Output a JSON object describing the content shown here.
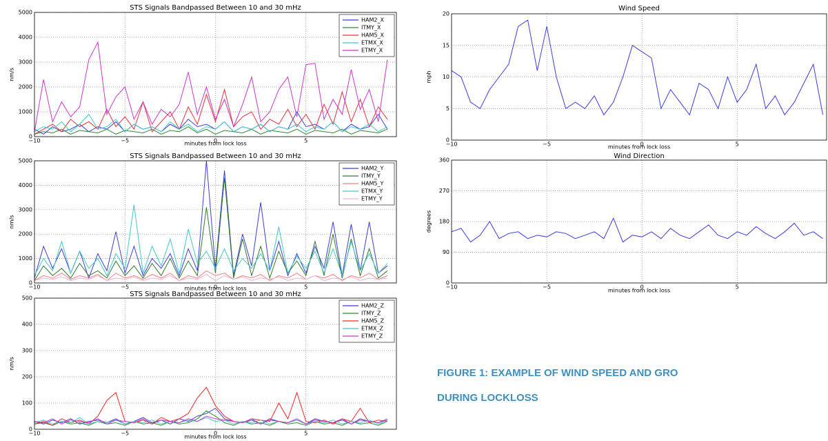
{
  "chart_data": [
    {
      "type": "line",
      "title": "STS Signals Bandpassed Between 10 and 30 mHz",
      "x_label": "minutes from lock loss",
      "y_label": "nm/s",
      "x": [
        -10,
        -9.5,
        -9,
        -8.5,
        -8,
        -7.5,
        -7,
        -6.5,
        -6,
        -5.5,
        -5,
        -4.5,
        -4,
        -3.5,
        -3,
        -2.5,
        -2,
        -1.5,
        -1,
        -0.5,
        0,
        0.5,
        1,
        1.5,
        2,
        2.5,
        3,
        3.5,
        4,
        4.5,
        5,
        5.5,
        6,
        6.5,
        7,
        7.5,
        8,
        8.5,
        9,
        9.5
      ],
      "xlim": [
        -10,
        10
      ],
      "xticks": [
        {
          "value": -10,
          "label": "−10"
        },
        {
          "value": -5,
          "label": "−5"
        },
        0,
        5
      ],
      "ylim": [
        0,
        5000
      ],
      "yticks": [
        0,
        1000,
        2000,
        3000,
        4000,
        5000
      ],
      "grid": true,
      "legend": "upper right",
      "series": [
        {
          "name": "HAM2_X",
          "color": "#3b3bd9",
          "values": [
            300,
            100,
            400,
            200,
            300,
            500,
            200,
            400,
            300,
            600,
            200,
            500,
            300,
            400,
            200,
            500,
            300,
            700,
            400,
            500,
            300,
            600,
            200,
            400,
            300,
            500,
            200,
            400,
            300,
            1000,
            400,
            500,
            300,
            600,
            200,
            500,
            300,
            400,
            900,
            300
          ]
        },
        {
          "name": "ITMY_X",
          "color": "#2e8b2e",
          "values": [
            100,
            200,
            150,
            300,
            100,
            250,
            200,
            150,
            300,
            100,
            250,
            200,
            150,
            300,
            100,
            250,
            200,
            400,
            150,
            300,
            100,
            250,
            200,
            150,
            300,
            100,
            250,
            200,
            150,
            300,
            100,
            250,
            200,
            150,
            300,
            100,
            250,
            200,
            150,
            300
          ]
        },
        {
          "name": "HAM5_X",
          "color": "#e8303a",
          "values": [
            100,
            300,
            500,
            200,
            700,
            400,
            600,
            300,
            1100,
            400,
            800,
            300,
            1400,
            200,
            600,
            1000,
            300,
            1200,
            500,
            1700,
            600,
            1900,
            400,
            800,
            1000,
            300,
            700,
            500,
            1100,
            400,
            900,
            300,
            1300,
            500,
            1800,
            600,
            1500,
            400,
            1200,
            700
          ]
        },
        {
          "name": "ETMX_X",
          "color": "#40c8c8",
          "values": [
            200,
            400,
            300,
            600,
            200,
            500,
            900,
            300,
            400,
            700,
            200,
            500,
            300,
            400,
            200,
            600,
            300,
            500,
            200,
            400,
            300,
            600,
            200,
            400,
            300,
            500,
            200,
            400,
            300,
            500,
            200,
            400,
            300,
            600,
            200,
            400,
            300,
            500,
            200,
            400
          ]
        },
        {
          "name": "ETMY_X",
          "color": "#cc33cc",
          "values": [
            200,
            2300,
            600,
            1400,
            800,
            1200,
            3100,
            3800,
            900,
            1600,
            2000,
            700,
            1400,
            500,
            1100,
            800,
            1300,
            2600,
            900,
            2000,
            700,
            1500,
            400,
            1300,
            2400,
            600,
            1000,
            1900,
            2400,
            800,
            2900,
            2950,
            700,
            1500,
            900,
            2700,
            1100,
            1900,
            600,
            3100
          ]
        }
      ]
    },
    {
      "type": "line",
      "title": "STS Signals Bandpassed Between 10 and 30 mHz",
      "x_label": "minutes from lock loss",
      "y_label": "nm/s",
      "x": [
        -10,
        -9.5,
        -9,
        -8.5,
        -8,
        -7.5,
        -7,
        -6.5,
        -6,
        -5.5,
        -5,
        -4.5,
        -4,
        -3.5,
        -3,
        -2.5,
        -2,
        -1.5,
        -1,
        -0.5,
        0,
        0.5,
        1,
        1.5,
        2,
        2.5,
        3,
        3.5,
        4,
        4.5,
        5,
        5.5,
        6,
        6.5,
        7,
        7.5,
        8,
        8.5,
        9,
        9.5
      ],
      "xlim": [
        -10,
        10
      ],
      "xticks": [
        {
          "value": -10,
          "label": "−10"
        },
        {
          "value": -5,
          "label": "−5"
        },
        0,
        5
      ],
      "ylim": [
        0,
        5000
      ],
      "yticks": [
        0,
        1000,
        2000,
        3000,
        4000,
        5000
      ],
      "grid": true,
      "legend": "upper right",
      "series": [
        {
          "name": "HAM2_Y",
          "color": "#3b3bd9",
          "values": [
            200,
            1500,
            600,
            1400,
            400,
            1300,
            200,
            1200,
            500,
            2100,
            400,
            1500,
            300,
            1000,
            600,
            1200,
            300,
            1400,
            500,
            5000,
            600,
            4600,
            300,
            2000,
            700,
            3300,
            500,
            1700,
            300,
            1200,
            400,
            1500,
            600,
            2500,
            300,
            2400,
            500,
            2500,
            400,
            700
          ]
        },
        {
          "name": "ITMY_Y",
          "color": "#2e7a2e",
          "values": [
            100,
            700,
            300,
            600,
            200,
            800,
            300,
            500,
            200,
            900,
            300,
            700,
            200,
            800,
            300,
            1000,
            200,
            900,
            300,
            3100,
            400,
            4300,
            200,
            1800,
            300,
            1500,
            200,
            1300,
            400,
            900,
            300,
            1700,
            300,
            2000,
            200,
            1800,
            300,
            1400,
            200,
            500
          ]
        },
        {
          "name": "HAM5_Y",
          "color": "#f08080",
          "values": [
            100,
            300,
            200,
            400,
            150,
            300,
            200,
            350,
            100,
            400,
            200,
            300,
            150,
            350,
            200,
            400,
            100,
            300,
            200,
            500,
            300,
            400,
            150,
            300,
            200,
            350,
            100,
            300,
            200,
            400,
            150,
            300,
            200,
            350,
            100,
            300,
            200,
            400,
            150,
            300
          ]
        },
        {
          "name": "ETMX_Y",
          "color": "#40c8c8",
          "values": [
            300,
            1000,
            500,
            1700,
            400,
            1300,
            600,
            1000,
            300,
            1200,
            600,
            3200,
            400,
            1500,
            700,
            1800,
            400,
            2200,
            800,
            1300,
            600,
            1400,
            500,
            1000,
            600,
            1200,
            500,
            2300,
            400,
            1100,
            600,
            1300,
            400,
            1400,
            300,
            1700,
            500,
            1200,
            400,
            800
          ]
        },
        {
          "name": "ETMY_Y",
          "color": "#f0b0d8",
          "values": [
            100,
            200,
            150,
            250,
            100,
            200,
            150,
            300,
            100,
            200,
            150,
            250,
            100,
            200,
            150,
            300,
            100,
            200,
            150,
            350,
            100,
            300,
            150,
            250,
            100,
            200,
            150,
            250,
            100,
            200,
            150,
            300,
            100,
            200,
            150,
            250,
            100,
            200,
            150,
            200
          ]
        }
      ]
    },
    {
      "type": "line",
      "title": "STS Signals Bandpassed Between 10 and 30 mHz",
      "x_label": "minutes from lock loss",
      "y_label": "nm/s",
      "x": [
        -10,
        -9.5,
        -9,
        -8.5,
        -8,
        -7.5,
        -7,
        -6.5,
        -6,
        -5.5,
        -5,
        -4.5,
        -4,
        -3.5,
        -3,
        -2.5,
        -2,
        -1.5,
        -1,
        -0.5,
        0,
        0.5,
        1,
        1.5,
        2,
        2.5,
        3,
        3.5,
        4,
        4.5,
        5,
        5.5,
        6,
        6.5,
        7,
        7.5,
        8,
        8.5,
        9,
        9.5
      ],
      "xlim": [
        -10,
        10
      ],
      "xticks": [
        {
          "value": -10,
          "label": "−10"
        },
        {
          "value": -5,
          "label": "−5"
        },
        0,
        5
      ],
      "ylim": [
        0,
        500
      ],
      "yticks": [
        0,
        100,
        200,
        300,
        400,
        500
      ],
      "grid": true,
      "legend": "upper right",
      "series": [
        {
          "name": "HAM2_Z",
          "color": "#3b3bd9",
          "values": [
            30,
            20,
            35,
            25,
            40,
            20,
            30,
            35,
            25,
            40,
            20,
            30,
            45,
            25,
            35,
            20,
            40,
            30,
            50,
            60,
            80,
            40,
            30,
            25,
            35,
            20,
            40,
            30,
            25,
            35,
            20,
            40,
            30,
            25,
            35,
            20,
            40,
            30,
            25,
            35
          ]
        },
        {
          "name": "ITMY_Z",
          "color": "#2e8b2e",
          "values": [
            20,
            25,
            15,
            30,
            20,
            25,
            15,
            30,
            20,
            25,
            15,
            30,
            20,
            25,
            15,
            30,
            20,
            25,
            40,
            70,
            50,
            25,
            15,
            30,
            20,
            25,
            15,
            30,
            20,
            25,
            15,
            30,
            20,
            25,
            15,
            30,
            20,
            25,
            15,
            30
          ]
        },
        {
          "name": "HAM5_Z",
          "color": "#ff2020",
          "values": [
            20,
            30,
            15,
            40,
            25,
            35,
            20,
            50,
            110,
            140,
            30,
            25,
            35,
            20,
            45,
            30,
            40,
            60,
            120,
            160,
            90,
            50,
            30,
            25,
            40,
            35,
            30,
            100,
            40,
            140,
            30,
            25,
            35,
            20,
            40,
            30,
            80,
            25,
            35,
            30
          ]
        },
        {
          "name": "ETMX_Z",
          "color": "#40c8c8",
          "values": [
            25,
            35,
            20,
            30,
            25,
            45,
            20,
            30,
            25,
            35,
            20,
            30,
            25,
            35,
            20,
            30,
            25,
            35,
            30,
            45,
            30,
            35,
            20,
            30,
            25,
            35,
            20,
            30,
            25,
            35,
            20,
            30,
            25,
            35,
            20,
            30,
            25,
            35,
            20,
            30
          ]
        },
        {
          "name": "ETMY_Z",
          "color": "#cc33cc",
          "values": [
            30,
            25,
            40,
            20,
            35,
            30,
            25,
            40,
            20,
            35,
            30,
            25,
            40,
            20,
            35,
            30,
            25,
            40,
            30,
            50,
            40,
            35,
            30,
            25,
            40,
            20,
            35,
            30,
            25,
            40,
            20,
            35,
            30,
            25,
            40,
            20,
            35,
            30,
            25,
            40
          ]
        }
      ]
    },
    {
      "type": "line",
      "title": "Wind Speed",
      "x_label": "minutes from lock loss",
      "y_label": "mph",
      "x": [
        -10,
        -9.5,
        -9,
        -8.5,
        -8,
        -7.5,
        -7,
        -6.5,
        -6,
        -5.5,
        -5,
        -4.5,
        -4,
        -3.5,
        -3,
        -2.5,
        -2,
        -1.5,
        -1,
        -0.5,
        0,
        0.5,
        1,
        1.5,
        2,
        2.5,
        3,
        3.5,
        4,
        4.5,
        5,
        5.5,
        6,
        6.5,
        7,
        7.5,
        8,
        8.5,
        9,
        9.5
      ],
      "xlim": [
        -10,
        9.7
      ],
      "xticks": [
        {
          "value": -10,
          "label": "−10"
        },
        {
          "value": -5,
          "label": "−5"
        },
        0,
        5
      ],
      "ylim": [
        0,
        20
      ],
      "yticks": [
        0,
        5,
        10,
        15,
        20
      ],
      "grid": true,
      "series": [
        {
          "color": "#3a3ae0",
          "values": [
            11,
            10,
            6,
            5,
            8,
            10,
            12,
            18,
            19,
            11,
            18,
            10,
            5,
            6,
            5,
            7,
            4,
            6,
            10,
            15,
            14,
            13,
            5,
            8,
            6,
            4,
            9,
            8,
            5,
            10,
            6,
            8,
            12,
            5,
            7,
            4,
            6,
            9,
            12,
            4
          ]
        }
      ]
    },
    {
      "type": "line",
      "title": "Wind Direction",
      "x_label": "minutes from lock loss",
      "y_label": "degrees",
      "x": [
        -10,
        -9.5,
        -9,
        -8.5,
        -8,
        -7.5,
        -7,
        -6.5,
        -6,
        -5.5,
        -5,
        -4.5,
        -4,
        -3.5,
        -3,
        -2.5,
        -2,
        -1.5,
        -1,
        -0.5,
        0,
        0.5,
        1,
        1.5,
        2,
        2.5,
        3,
        3.5,
        4,
        4.5,
        5,
        5.5,
        6,
        6.5,
        7,
        7.5,
        8,
        8.5,
        9,
        9.5
      ],
      "xlim": [
        -10,
        9.7
      ],
      "xticks": [
        {
          "value": -10,
          "label": "−10"
        },
        {
          "value": -5,
          "label": "−5"
        },
        0,
        5
      ],
      "ylim": [
        0,
        360
      ],
      "yticks": [
        0,
        90,
        180,
        270,
        360
      ],
      "grid": true,
      "series": [
        {
          "color": "#3a3ae0",
          "values": [
            150,
            160,
            120,
            140,
            180,
            130,
            145,
            150,
            130,
            140,
            135,
            150,
            145,
            130,
            140,
            150,
            130,
            190,
            120,
            140,
            135,
            150,
            130,
            160,
            140,
            130,
            150,
            170,
            140,
            130,
            150,
            140,
            165,
            145,
            130,
            150,
            175,
            140,
            150,
            130
          ]
        }
      ]
    }
  ],
  "caption": {
    "line1": "FIGURE 1: EXAMPLE OF WIND SPEED AND GRO",
    "line2": "DURING LOCKLOSS"
  }
}
